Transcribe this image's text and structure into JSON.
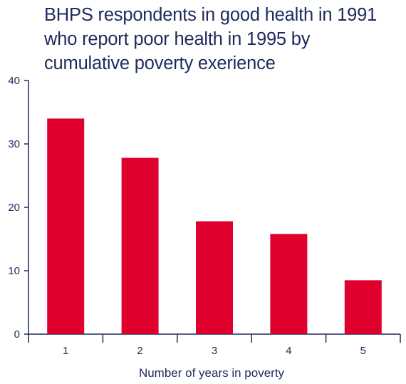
{
  "chart_data": {
    "type": "bar",
    "title": "BHPS respondents in good health in 1991 who report poor health in 1995 by cumulative poverty exerience",
    "xlabel": "Number of years in poverty",
    "ylabel": "",
    "categories": [
      "1",
      "2",
      "3",
      "4",
      "5"
    ],
    "values": [
      34,
      27.8,
      17.8,
      15.8,
      8.5
    ],
    "ylim": [
      0,
      40
    ],
    "yticks": [
      "0",
      "10",
      "20",
      "30",
      "40"
    ],
    "grid": false,
    "legend": "none",
    "colors": {
      "bar": "#e0002d",
      "text": "#1f2a5c",
      "axis": "#1f2a5c"
    }
  }
}
